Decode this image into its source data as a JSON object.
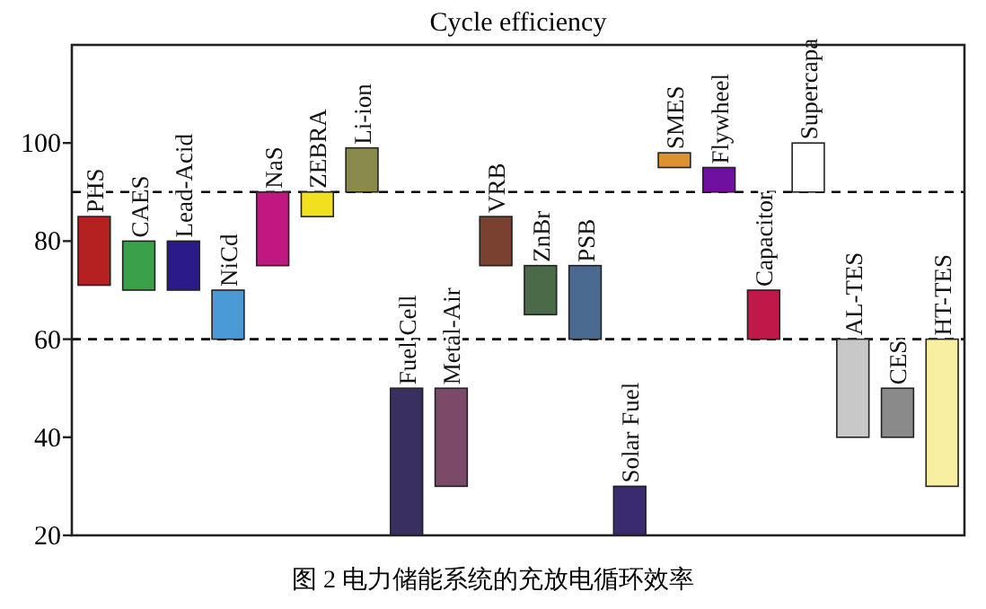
{
  "chart_data": {
    "type": "bar",
    "title": "Cycle efficiency",
    "categories": [
      "PHS",
      "CAES",
      "Lead-Acid",
      "NiCd",
      "NaS",
      "ZEBRA",
      "Li-ion",
      "Fuel Cell",
      "Metal-Air",
      "VRB",
      "ZnBr",
      "PSB",
      "Solar Fuel",
      "SMES",
      "Flywheel",
      "Capacitor",
      "Supercapa",
      "AL-TES",
      "CES",
      "HT-TES"
    ],
    "base": [
      71,
      70,
      70,
      60,
      75,
      85,
      90,
      20,
      30,
      75,
      65,
      60,
      20,
      95,
      90,
      60,
      90,
      40,
      40,
      30
    ],
    "values": [
      14,
      10,
      10,
      10,
      15,
      5,
      9,
      30,
      20,
      10,
      10,
      15,
      10,
      3,
      5,
      10,
      10,
      20,
      10,
      30
    ],
    "colors": [
      "#b52020",
      "#3aa04a",
      "#2a1a8a",
      "#4a9ad8",
      "#c01880",
      "#f0e020",
      "#8a8a4a",
      "#3a3060",
      "#7a4a68",
      "#7a4030",
      "#4a6a48",
      "#4a6a90",
      "#3a2a70",
      "#e09030",
      "#7010a0",
      "#c01848",
      "#ffffff",
      "#c8c8c8",
      "#8a8a8a",
      "#f8f0a0"
    ],
    "ylim": [
      20,
      120
    ],
    "yticks": [
      20,
      40,
      60,
      80,
      100
    ],
    "ref_lines": [
      {
        "axis": "y",
        "value": 60,
        "line_style": "dashed"
      },
      {
        "axis": "y",
        "value": 90,
        "line_style": "dashed"
      }
    ],
    "tick_labels": "y",
    "grid": false,
    "annotations": [
      "图 2  电力储能系统的充放电循环效率"
    ]
  }
}
